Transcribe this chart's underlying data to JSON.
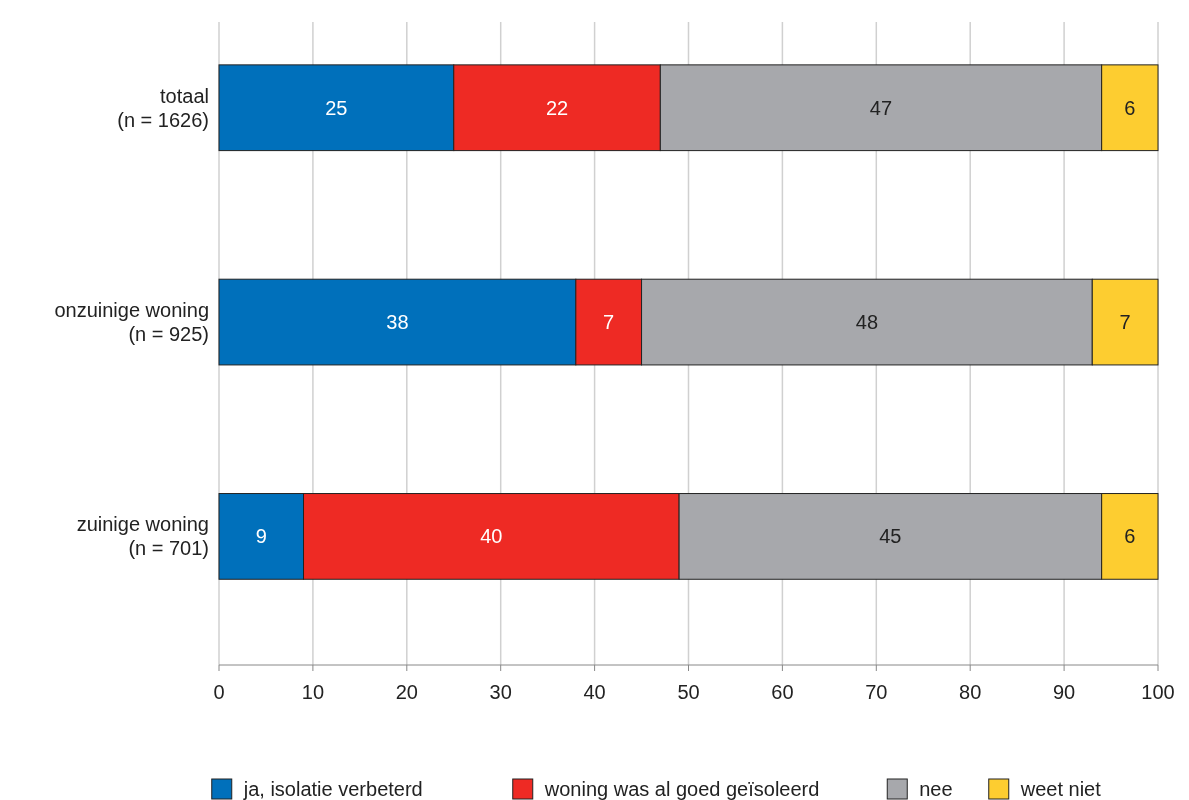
{
  "chart_data": {
    "type": "bar",
    "orientation": "horizontal",
    "stacked": true,
    "data_labels": true,
    "grid": "x",
    "legend": "bottom",
    "categories": [
      "totaal\n(n = 1626)",
      "onzuinige woning\n(n = 925)",
      "zuinige woning\n(n = 701)"
    ],
    "xlim": [
      0,
      100
    ],
    "xticks": [
      0,
      10,
      20,
      30,
      40,
      50,
      60,
      70,
      80,
      90,
      100
    ],
    "series": [
      {
        "name": "ja, isolatie verbeterd",
        "color": "#0070bb",
        "values": [
          25,
          38,
          9
        ]
      },
      {
        "name": "woning was al goed geïsoleerd",
        "color": "#ee2a24",
        "values": [
          22,
          7,
          40
        ]
      },
      {
        "name": "nee",
        "color": "#a7a8ac",
        "values": [
          47,
          48,
          45
        ]
      },
      {
        "name": "weet niet",
        "color": "#fdcd30",
        "values": [
          6,
          7,
          6
        ]
      }
    ]
  }
}
